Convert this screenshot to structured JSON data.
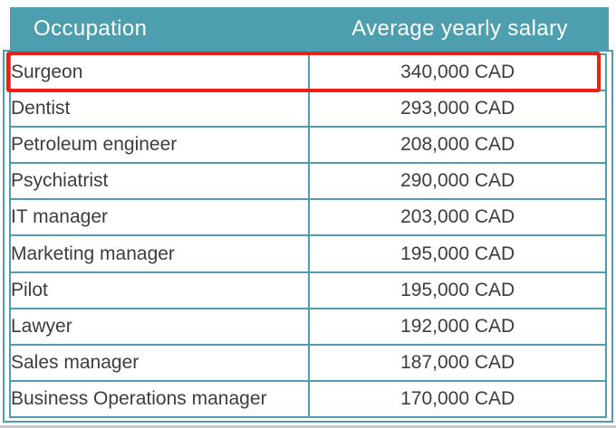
{
  "chart_data": {
    "type": "table",
    "title": "",
    "columns": [
      "Occupation",
      "Average yearly salary"
    ],
    "rows": [
      [
        "Surgeon",
        "340,000 CAD"
      ],
      [
        "Dentist",
        "293,000 CAD"
      ],
      [
        "Petroleum engineer",
        "208,000 CAD"
      ],
      [
        "Psychiatrist",
        "290,000 CAD"
      ],
      [
        "IT manager",
        "203,000 CAD"
      ],
      [
        "Marketing manager",
        "195,000 CAD"
      ],
      [
        "Pilot",
        "195,000 CAD"
      ],
      [
        "Lawyer",
        "192,000 CAD"
      ],
      [
        "Sales manager",
        "187,000 CAD"
      ],
      [
        "Business Operations manager",
        "170,000 CAD"
      ]
    ],
    "salary_values_cad": [
      340000,
      293000,
      208000,
      290000,
      203000,
      195000,
      195000,
      192000,
      187000,
      170000
    ],
    "currency": "CAD",
    "highlighted_row": "Surgeon",
    "highlight_style": "red rectangle outline around first data row"
  },
  "colors": {
    "header_bg": "#4d9fb0",
    "grid_border": "#4d9fb0",
    "highlight_red": "#ee2013",
    "text_color": "#3d3d3d",
    "bottom_shadow": "#c8c8c8"
  }
}
